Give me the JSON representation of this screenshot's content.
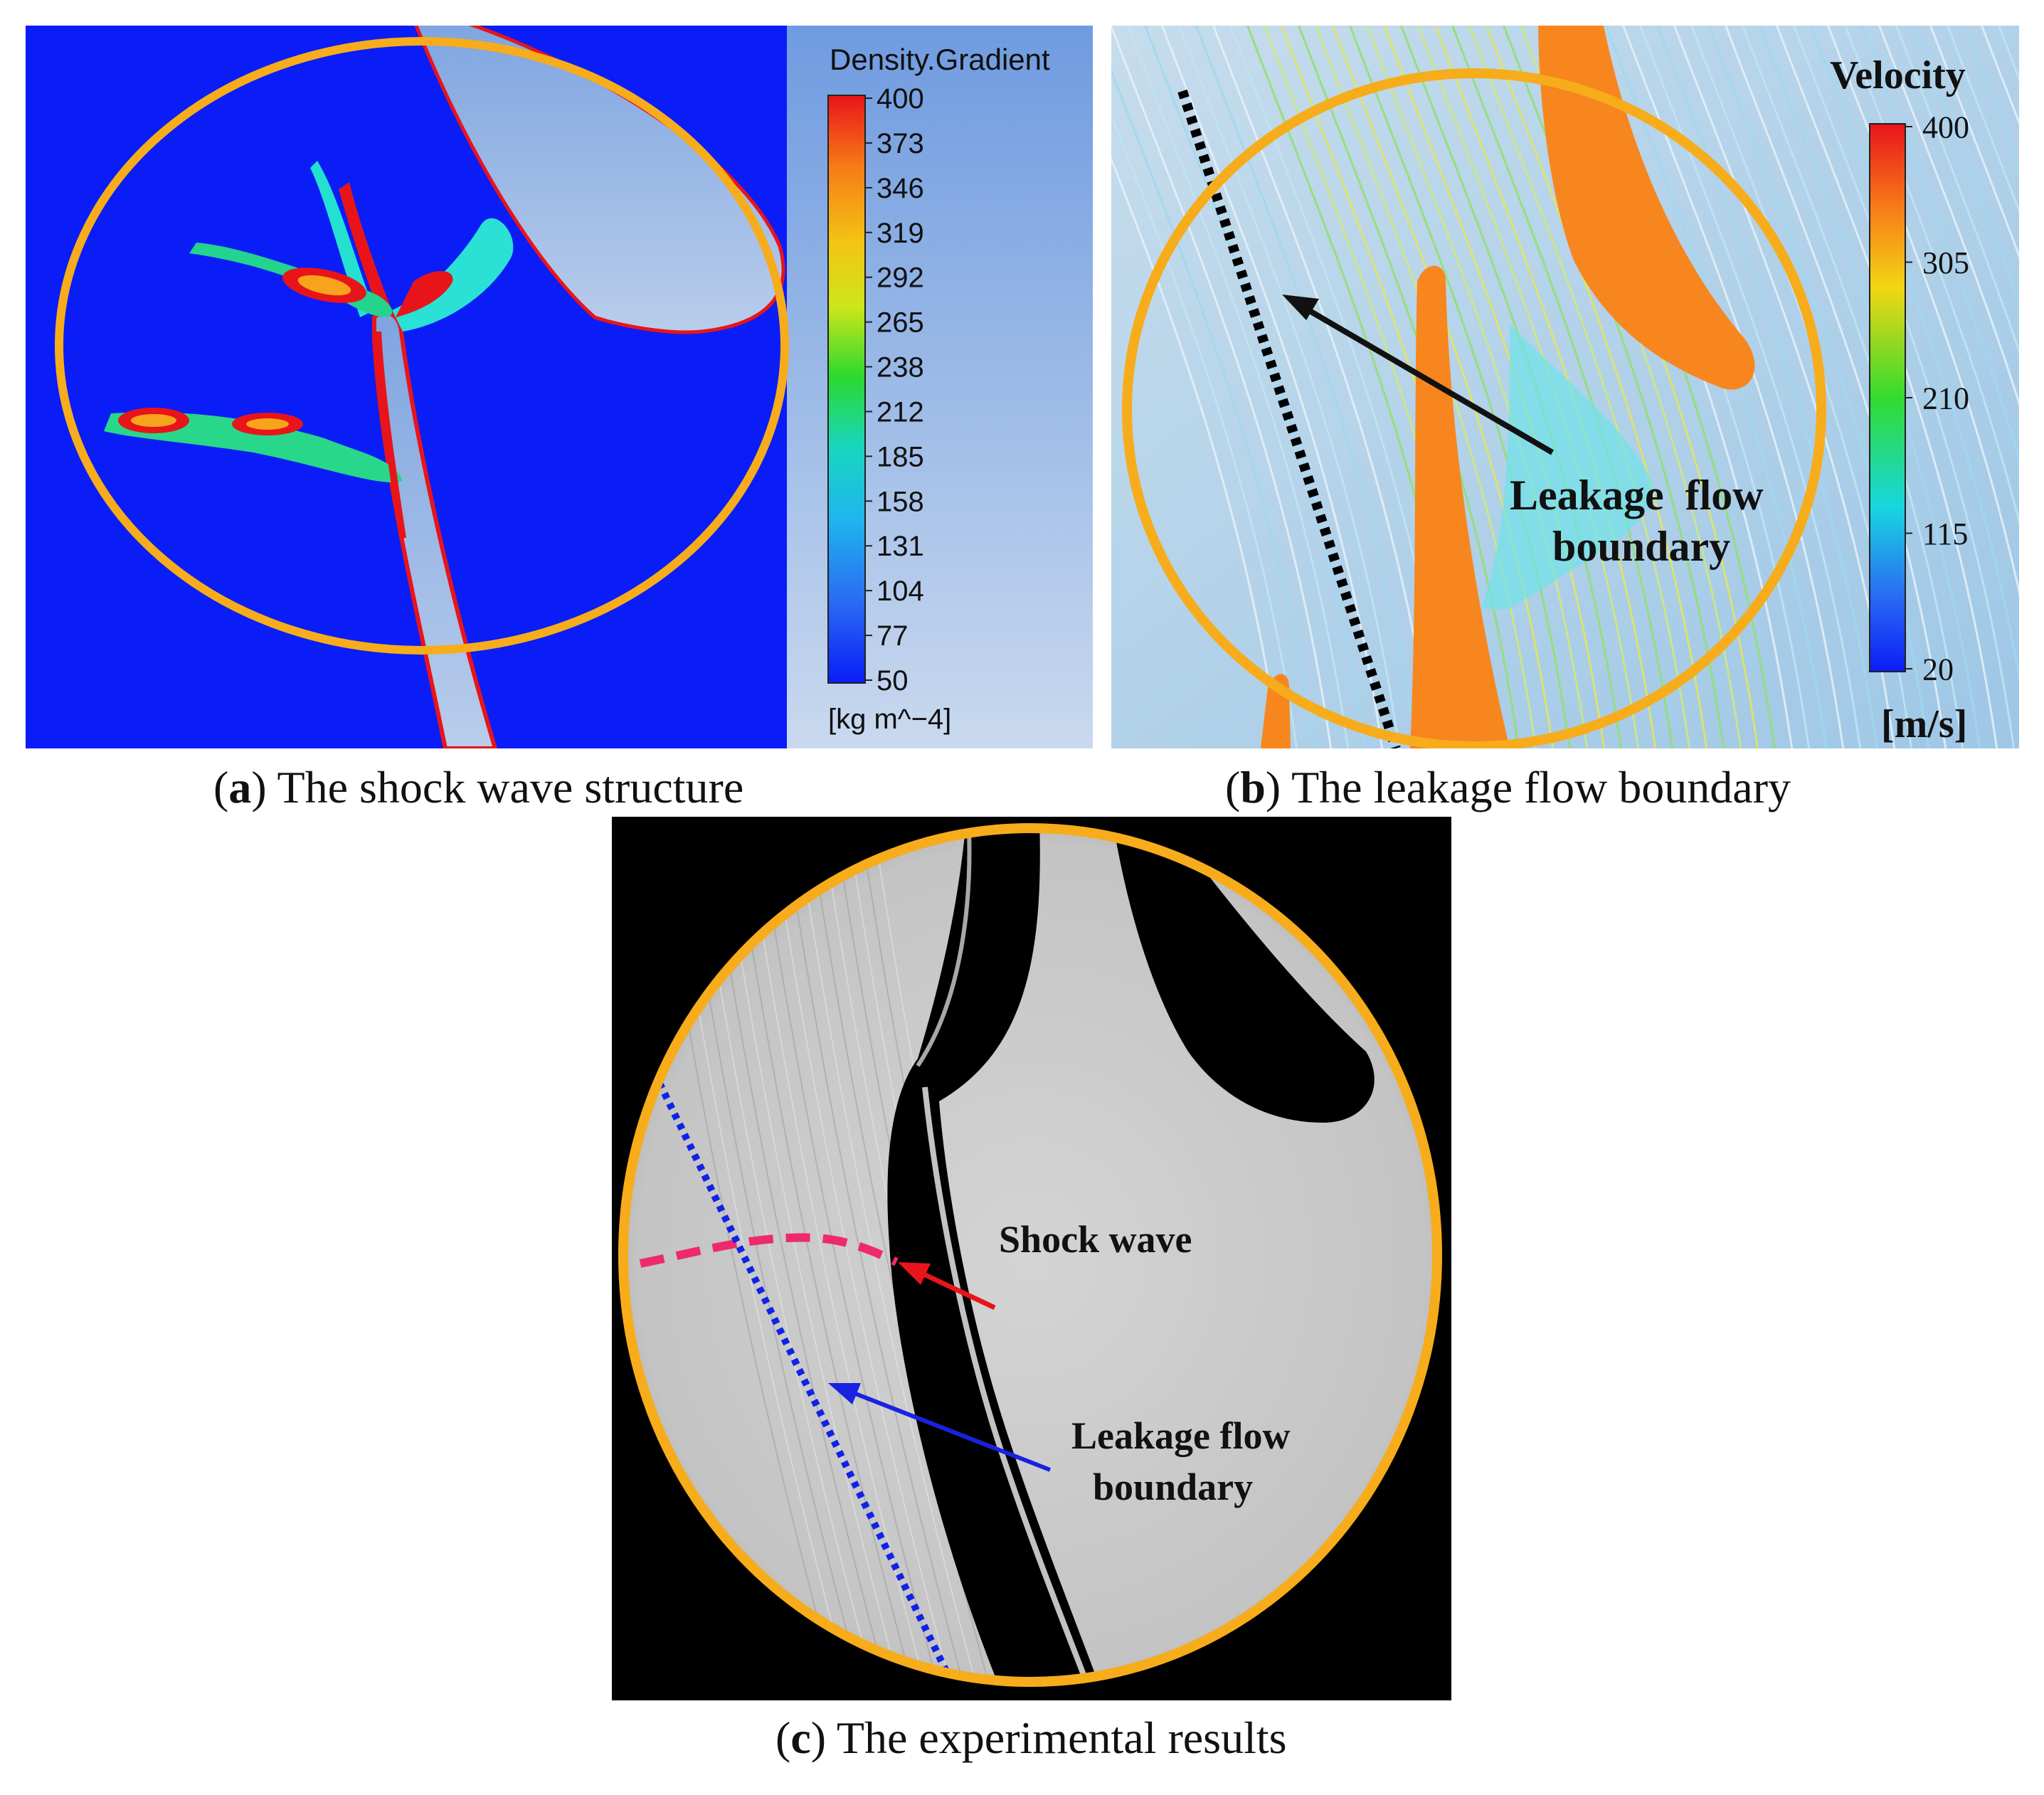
{
  "colors": {
    "highlight_ring": "#f7ac1b",
    "panel_a_background": "#0a1df7",
    "blade_fill_cfd": "#a6c0e4",
    "blade_fill_orange": "#f7861f",
    "shock_dash": "#ee2a6a",
    "boundary_dots_c": "#1022e6",
    "arrow_shock": "#e8141a",
    "arrow_boundary": "#1922e0",
    "arrow_b": "#111111"
  },
  "panel_a": {
    "legend_title": "Density.Gradient",
    "legend_ticks": [
      "400",
      "373",
      "346",
      "319",
      "292",
      "265",
      "238",
      "212",
      "185",
      "158",
      "131",
      "104",
      "77",
      "50"
    ],
    "legend_unit": "[kg m^−4]",
    "caption_letter": "a",
    "caption_text": "The shock wave structure"
  },
  "panel_b": {
    "legend_title": "Velocity",
    "legend_ticks": [
      "400",
      "305",
      "210",
      "115",
      "20"
    ],
    "legend_unit": "[m/s]",
    "annotation_line1": "Leakage  flow",
    "annotation_line2": "boundary",
    "caption_letter": "b",
    "caption_text": "The leakage flow boundary"
  },
  "panel_c": {
    "shock_label": "Shock wave",
    "boundary_line1": "Leakage flow",
    "boundary_line2": "boundary",
    "caption_letter": "c",
    "caption_text": "The experimental results"
  }
}
